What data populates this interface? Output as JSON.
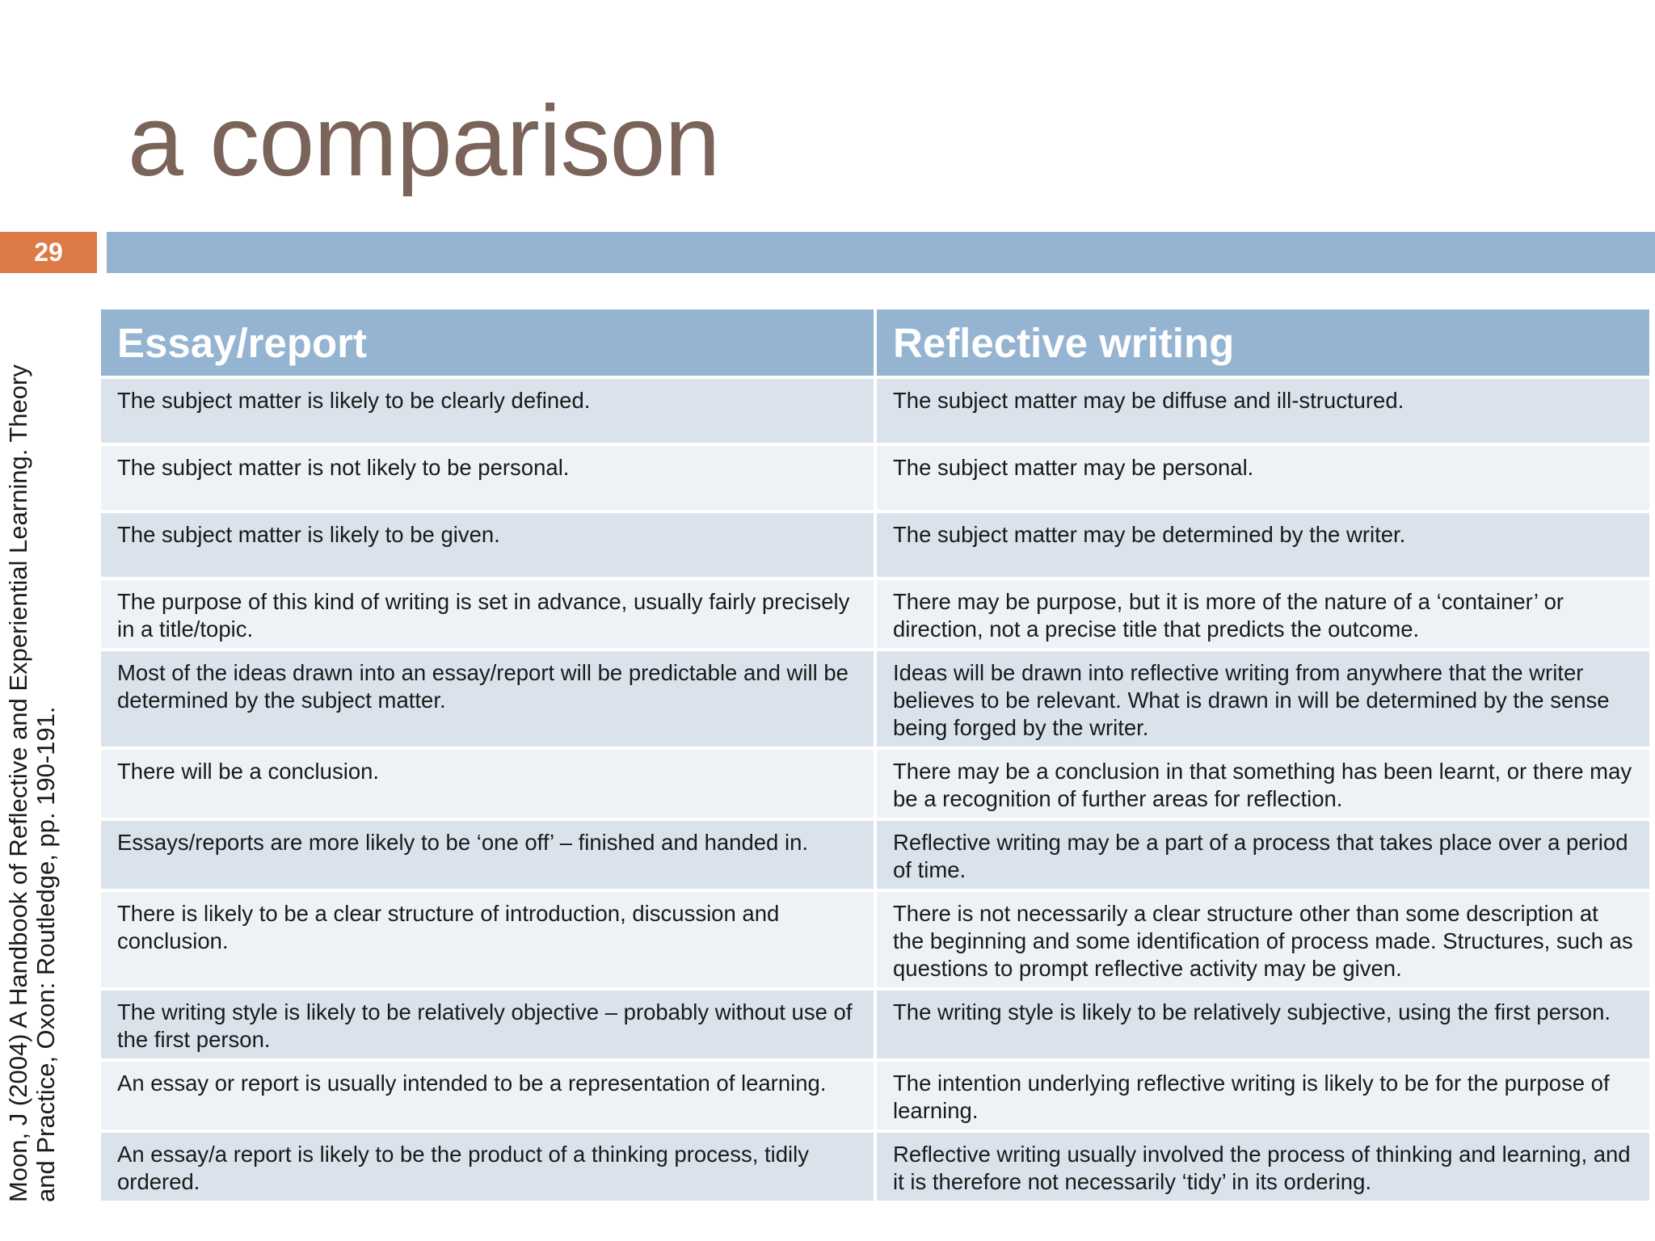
{
  "title": "a comparison",
  "slide_number": "29",
  "citation": {
    "line1": "Moon, J (2004) A Handbook of Reflective and Experiential Learning. Theory",
    "line2": "and Practice, Oxon: Routledge, pp. 190-191."
  },
  "table": {
    "headers": [
      "Essay/report",
      "Reflective writing"
    ],
    "rows": [
      [
        "The subject matter is likely to be clearly defined.",
        "The subject matter may be diffuse and ill-structured."
      ],
      [
        "The subject matter is not likely to be personal.",
        "The subject matter may be personal."
      ],
      [
        "The subject matter is likely to be given.",
        "The subject matter may be determined by the writer."
      ],
      [
        "The purpose of this kind of writing is set in advance, usually fairly precisely in a title/topic.",
        "There may be purpose, but it is more of the nature of a ‘container’ or direction, not a precise title that predicts the outcome."
      ],
      [
        "Most of the ideas drawn into an essay/report will be predictable and will be determined by the subject matter.",
        "Ideas will be drawn into reflective writing from anywhere that the writer believes to be relevant. What is drawn in will be determined by the sense being forged by the writer."
      ],
      [
        "There will be a conclusion.",
        "There may be a conclusion in that something has been learnt, or there may be a recognition of further areas for reflection."
      ],
      [
        "Essays/reports are more likely to be ‘one off’ – finished and handed in.",
        "Reflective writing may be a part of a process that takes place over a period of time."
      ],
      [
        "There is likely to be a clear structure of introduction, discussion and conclusion.",
        "There is not necessarily a clear structure other than some description at the beginning and some identification of process made. Structures, such as questions to prompt reflective activity may be given."
      ],
      [
        "The writing style is likely to be relatively objective – probably without use of the first person.",
        "The writing style is likely to be relatively subjective, using the first person."
      ],
      [
        "An essay or report is usually intended to be a representation of learning.",
        "The intention underlying reflective writing is likely to be for the purpose of learning."
      ],
      [
        "An essay/a report is likely to be the product of a thinking process, tidily ordered.",
        "Reflective writing usually involved the process of thinking and learning, and it is therefore not necessarily ‘tidy’ in its ordering."
      ]
    ]
  },
  "colors": {
    "accent_orange": "#dd7a45",
    "header_blue": "#95b4d1",
    "title_brown": "#7a6359",
    "row_band_dark": "#dae3ec",
    "row_band_light": "#eef2f6"
  }
}
